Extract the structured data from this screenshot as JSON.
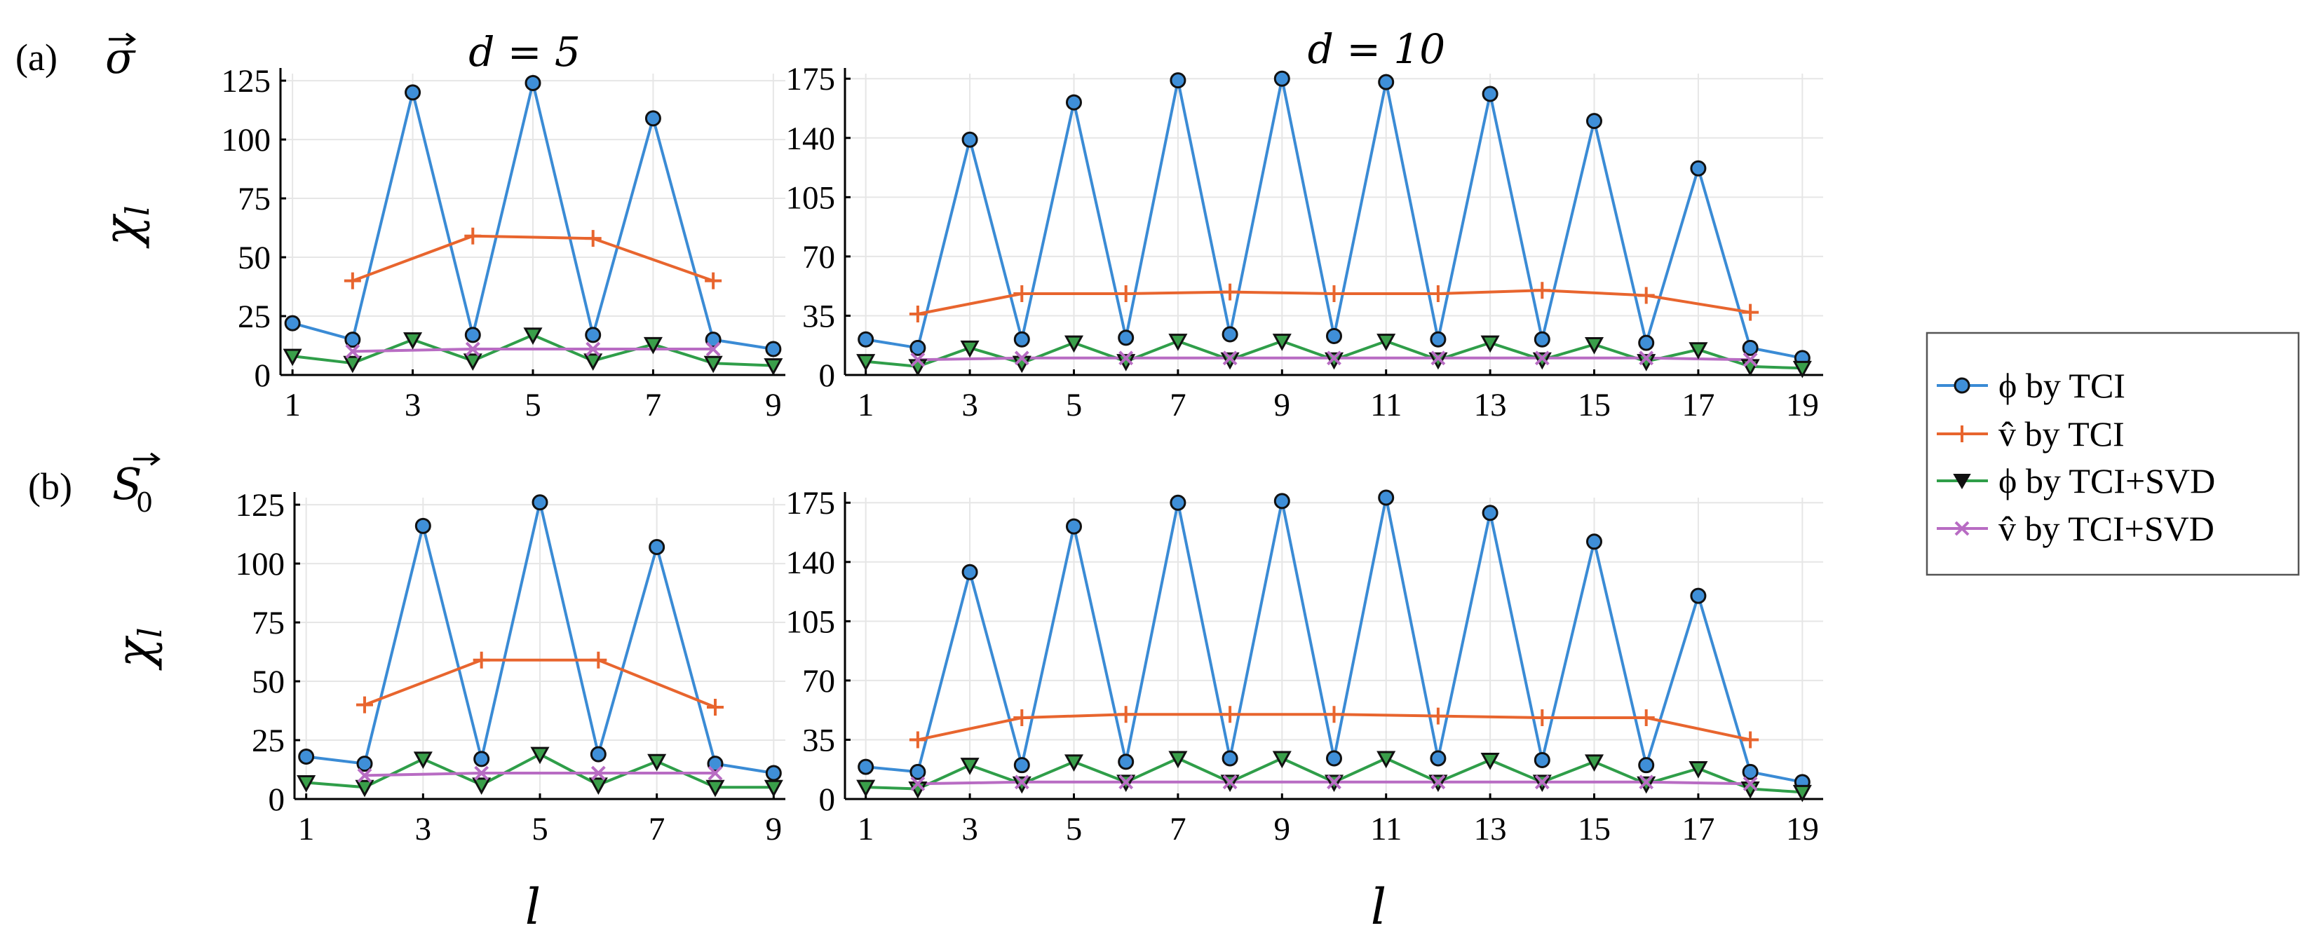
{
  "panel_labels": [
    "(a)",
    "(b)"
  ],
  "quantity_labels": [
    "σ",
    "S"
  ],
  "quantity_subscript": "0",
  "chart_data": [
    {
      "type": "line",
      "panel": "(a)",
      "title": "d = 5",
      "xlabel": "",
      "ylabel": "χ_l",
      "xlim": [
        0.8,
        9.2
      ],
      "ylim": [
        0,
        128
      ],
      "xticks": [
        1,
        3,
        5,
        7,
        9
      ],
      "yticks": [
        0,
        25,
        50,
        75,
        100,
        125
      ],
      "series": [
        {
          "name": "ϕ by TCI",
          "x": [
            1,
            2,
            3,
            4,
            5,
            6,
            7,
            8,
            9
          ],
          "values": [
            22,
            15,
            120,
            17,
            124,
            17,
            109,
            15,
            11
          ]
        },
        {
          "name": "v̂ by TCI",
          "x": [
            2,
            4,
            6,
            8
          ],
          "values": [
            40,
            59,
            58,
            40
          ]
        },
        {
          "name": "ϕ by TCI+SVD",
          "x": [
            1,
            2,
            3,
            4,
            5,
            6,
            7,
            8,
            9
          ],
          "values": [
            8,
            5,
            15,
            6,
            17,
            6,
            13,
            5,
            4
          ]
        },
        {
          "name": "v̂ by TCI+SVD",
          "x": [
            2,
            4,
            6,
            8
          ],
          "values": [
            10,
            11,
            11,
            11
          ]
        }
      ]
    },
    {
      "type": "line",
      "panel": "(a)",
      "title": "d = 10",
      "xlabel": "",
      "ylabel": "",
      "xlim": [
        0.6,
        19.4
      ],
      "ylim": [
        0,
        178
      ],
      "xticks": [
        1,
        3,
        5,
        7,
        9,
        11,
        13,
        15,
        17,
        19
      ],
      "yticks": [
        0,
        35,
        70,
        105,
        140,
        175
      ],
      "series": [
        {
          "name": "ϕ by TCI",
          "x": [
            1,
            2,
            3,
            4,
            5,
            6,
            7,
            8,
            9,
            10,
            11,
            12,
            13,
            14,
            15,
            16,
            17,
            18,
            19
          ],
          "values": [
            21,
            16,
            139,
            21,
            161,
            22,
            174,
            24,
            175,
            23,
            173,
            21,
            166,
            21,
            150,
            19,
            122,
            16,
            10
          ]
        },
        {
          "name": "v̂ by TCI",
          "x": [
            2,
            4,
            6,
            8,
            10,
            12,
            14,
            16,
            18
          ],
          "values": [
            36,
            48,
            48,
            49,
            48,
            48,
            50,
            47,
            37
          ]
        },
        {
          "name": "ϕ by TCI+SVD",
          "x": [
            1,
            2,
            3,
            4,
            5,
            6,
            7,
            8,
            9,
            10,
            11,
            12,
            13,
            14,
            15,
            16,
            17,
            18,
            19
          ],
          "values": [
            8,
            5,
            16,
            7,
            19,
            8,
            20,
            9,
            20,
            9,
            20,
            9,
            19,
            9,
            18,
            8,
            15,
            5,
            4
          ]
        },
        {
          "name": "v̂ by TCI+SVD",
          "x": [
            2,
            4,
            6,
            8,
            10,
            12,
            14,
            16,
            18
          ],
          "values": [
            9,
            10,
            10,
            10,
            10,
            10,
            10,
            10,
            9
          ]
        }
      ]
    },
    {
      "type": "line",
      "panel": "(b)",
      "title": "",
      "xlabel": "l",
      "ylabel": "χ_l",
      "xlim": [
        0.8,
        9.2
      ],
      "ylim": [
        0,
        128
      ],
      "xticks": [
        1,
        3,
        5,
        7,
        9
      ],
      "yticks": [
        0,
        25,
        50,
        75,
        100,
        125
      ],
      "series": [
        {
          "name": "ϕ by TCI",
          "x": [
            1,
            2,
            3,
            4,
            5,
            6,
            7,
            8,
            9
          ],
          "values": [
            18,
            15,
            116,
            17,
            126,
            19,
            107,
            15,
            11
          ]
        },
        {
          "name": "v̂ by TCI",
          "x": [
            2,
            4,
            6,
            8
          ],
          "values": [
            40,
            59,
            59,
            39
          ]
        },
        {
          "name": "ϕ by TCI+SVD",
          "x": [
            1,
            2,
            3,
            4,
            5,
            6,
            7,
            8,
            9
          ],
          "values": [
            7,
            5,
            17,
            6,
            19,
            6,
            16,
            5,
            5
          ]
        },
        {
          "name": "v̂ by TCI+SVD",
          "x": [
            2,
            4,
            6,
            8
          ],
          "values": [
            10,
            11,
            11,
            11
          ]
        }
      ]
    },
    {
      "type": "line",
      "panel": "(b)",
      "title": "",
      "xlabel": "l",
      "ylabel": "",
      "xlim": [
        0.6,
        19.4
      ],
      "ylim": [
        0,
        178
      ],
      "xticks": [
        1,
        3,
        5,
        7,
        9,
        11,
        13,
        15,
        17,
        19
      ],
      "yticks": [
        0,
        35,
        70,
        105,
        140,
        175
      ],
      "series": [
        {
          "name": "ϕ by TCI",
          "x": [
            1,
            2,
            3,
            4,
            5,
            6,
            7,
            8,
            9,
            10,
            11,
            12,
            13,
            14,
            15,
            16,
            17,
            18,
            19
          ],
          "values": [
            19,
            16,
            134,
            20,
            161,
            22,
            175,
            24,
            176,
            24,
            178,
            24,
            169,
            23,
            152,
            20,
            120,
            16,
            10
          ]
        },
        {
          "name": "v̂ by TCI",
          "x": [
            2,
            4,
            6,
            8,
            10,
            12,
            14,
            16,
            18
          ],
          "values": [
            35,
            48,
            50,
            50,
            50,
            49,
            48,
            48,
            35
          ]
        },
        {
          "name": "ϕ by TCI+SVD",
          "x": [
            1,
            2,
            3,
            4,
            5,
            6,
            7,
            8,
            9,
            10,
            11,
            12,
            13,
            14,
            15,
            16,
            17,
            18,
            19
          ],
          "values": [
            7,
            6,
            20,
            9,
            22,
            10,
            24,
            10,
            24,
            10,
            24,
            10,
            23,
            10,
            22,
            9,
            18,
            6,
            4
          ]
        },
        {
          "name": "v̂ by TCI+SVD",
          "x": [
            2,
            4,
            6,
            8,
            10,
            12,
            14,
            16,
            18
          ],
          "values": [
            9,
            10,
            10,
            10,
            10,
            10,
            10,
            10,
            9
          ]
        }
      ]
    }
  ],
  "legend": {
    "location": "right",
    "entries": [
      "ϕ by TCI",
      "v̂ by TCI",
      "ϕ by TCI+SVD",
      "v̂ by TCI+SVD"
    ]
  },
  "colors": {
    "phi_tci": "#3a8bd5",
    "v_tci": "#e8652e",
    "phi_svd": "#2f9e49",
    "v_svd": "#b86cc3",
    "marker_fill_circle": "#3f8fd8",
    "marker_fill_tri": "#3a9f4a"
  }
}
